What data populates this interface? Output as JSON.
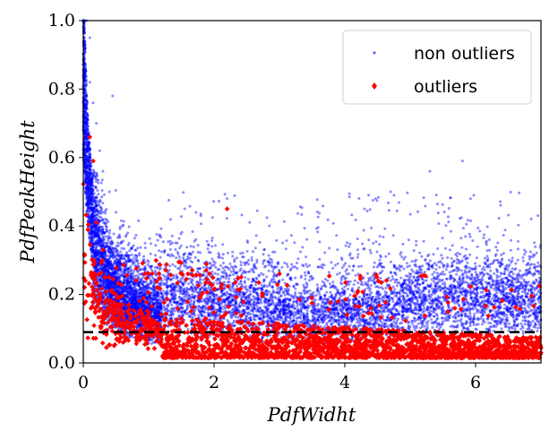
{
  "chart_data": {
    "type": "scatter",
    "title": "",
    "xlabel": "PdfWidht",
    "ylabel": "PdfPeakHeight",
    "xlim": [
      0,
      7
    ],
    "ylim": [
      0,
      1.0
    ],
    "xticks": [
      0,
      2,
      4,
      6
    ],
    "yticks": [
      0.0,
      0.2,
      0.4,
      0.6,
      0.8,
      1.0
    ],
    "xtick_labels": [
      "0",
      "2",
      "4",
      "6"
    ],
    "ytick_labels": [
      "0.0",
      "0.2",
      "0.4",
      "0.6",
      "0.8",
      "1.0"
    ],
    "grid": false,
    "legend_position": "top-right",
    "threshold_line": {
      "y": 0.09,
      "style": "dashed",
      "color": "#000000"
    },
    "series": [
      {
        "name": "non outliers",
        "color": "#0000ff",
        "marker": "dot",
        "sample_points": [
          [
            0.05,
            1.0
          ],
          [
            0.1,
            0.95
          ],
          [
            0.1,
            0.82
          ],
          [
            0.15,
            0.76
          ],
          [
            0.2,
            0.7
          ],
          [
            0.25,
            0.62
          ],
          [
            0.3,
            0.56
          ],
          [
            0.4,
            0.5
          ],
          [
            0.45,
            0.78
          ],
          [
            0.5,
            0.44
          ],
          [
            0.6,
            0.4
          ],
          [
            0.7,
            0.35
          ],
          [
            0.8,
            0.3
          ],
          [
            1.0,
            0.26
          ],
          [
            1.2,
            0.24
          ],
          [
            1.5,
            0.22
          ],
          [
            2.0,
            0.2
          ],
          [
            2.5,
            0.19
          ],
          [
            2.2,
            0.48
          ],
          [
            3.0,
            0.18
          ],
          [
            3.5,
            0.17
          ],
          [
            4.0,
            0.17
          ],
          [
            4.3,
            0.45
          ],
          [
            4.7,
            0.5
          ],
          [
            5.0,
            0.16
          ],
          [
            5.3,
            0.56
          ],
          [
            5.4,
            0.49
          ],
          [
            5.8,
            0.59
          ],
          [
            6.0,
            0.16
          ],
          [
            6.5,
            0.15
          ],
          [
            7.0,
            0.15
          ]
        ]
      },
      {
        "name": "outliers",
        "color": "#ff0000",
        "marker": "diamond",
        "sample_points": [
          [
            0.1,
            0.66
          ],
          [
            0.15,
            0.59
          ],
          [
            0.2,
            0.41
          ],
          [
            0.3,
            0.33
          ],
          [
            0.4,
            0.25
          ],
          [
            0.5,
            0.2
          ],
          [
            0.7,
            0.17
          ],
          [
            1.0,
            0.14
          ],
          [
            1.5,
            0.13
          ],
          [
            2.0,
            0.12
          ],
          [
            2.2,
            0.45
          ],
          [
            2.5,
            0.1
          ],
          [
            3.0,
            0.26
          ],
          [
            3.5,
            0.08
          ],
          [
            4.0,
            0.06
          ],
          [
            4.5,
            0.05
          ],
          [
            5.0,
            0.04
          ],
          [
            5.5,
            0.04
          ],
          [
            6.0,
            0.03
          ],
          [
            6.5,
            0.03
          ],
          [
            7.0,
            0.03
          ]
        ]
      }
    ]
  }
}
